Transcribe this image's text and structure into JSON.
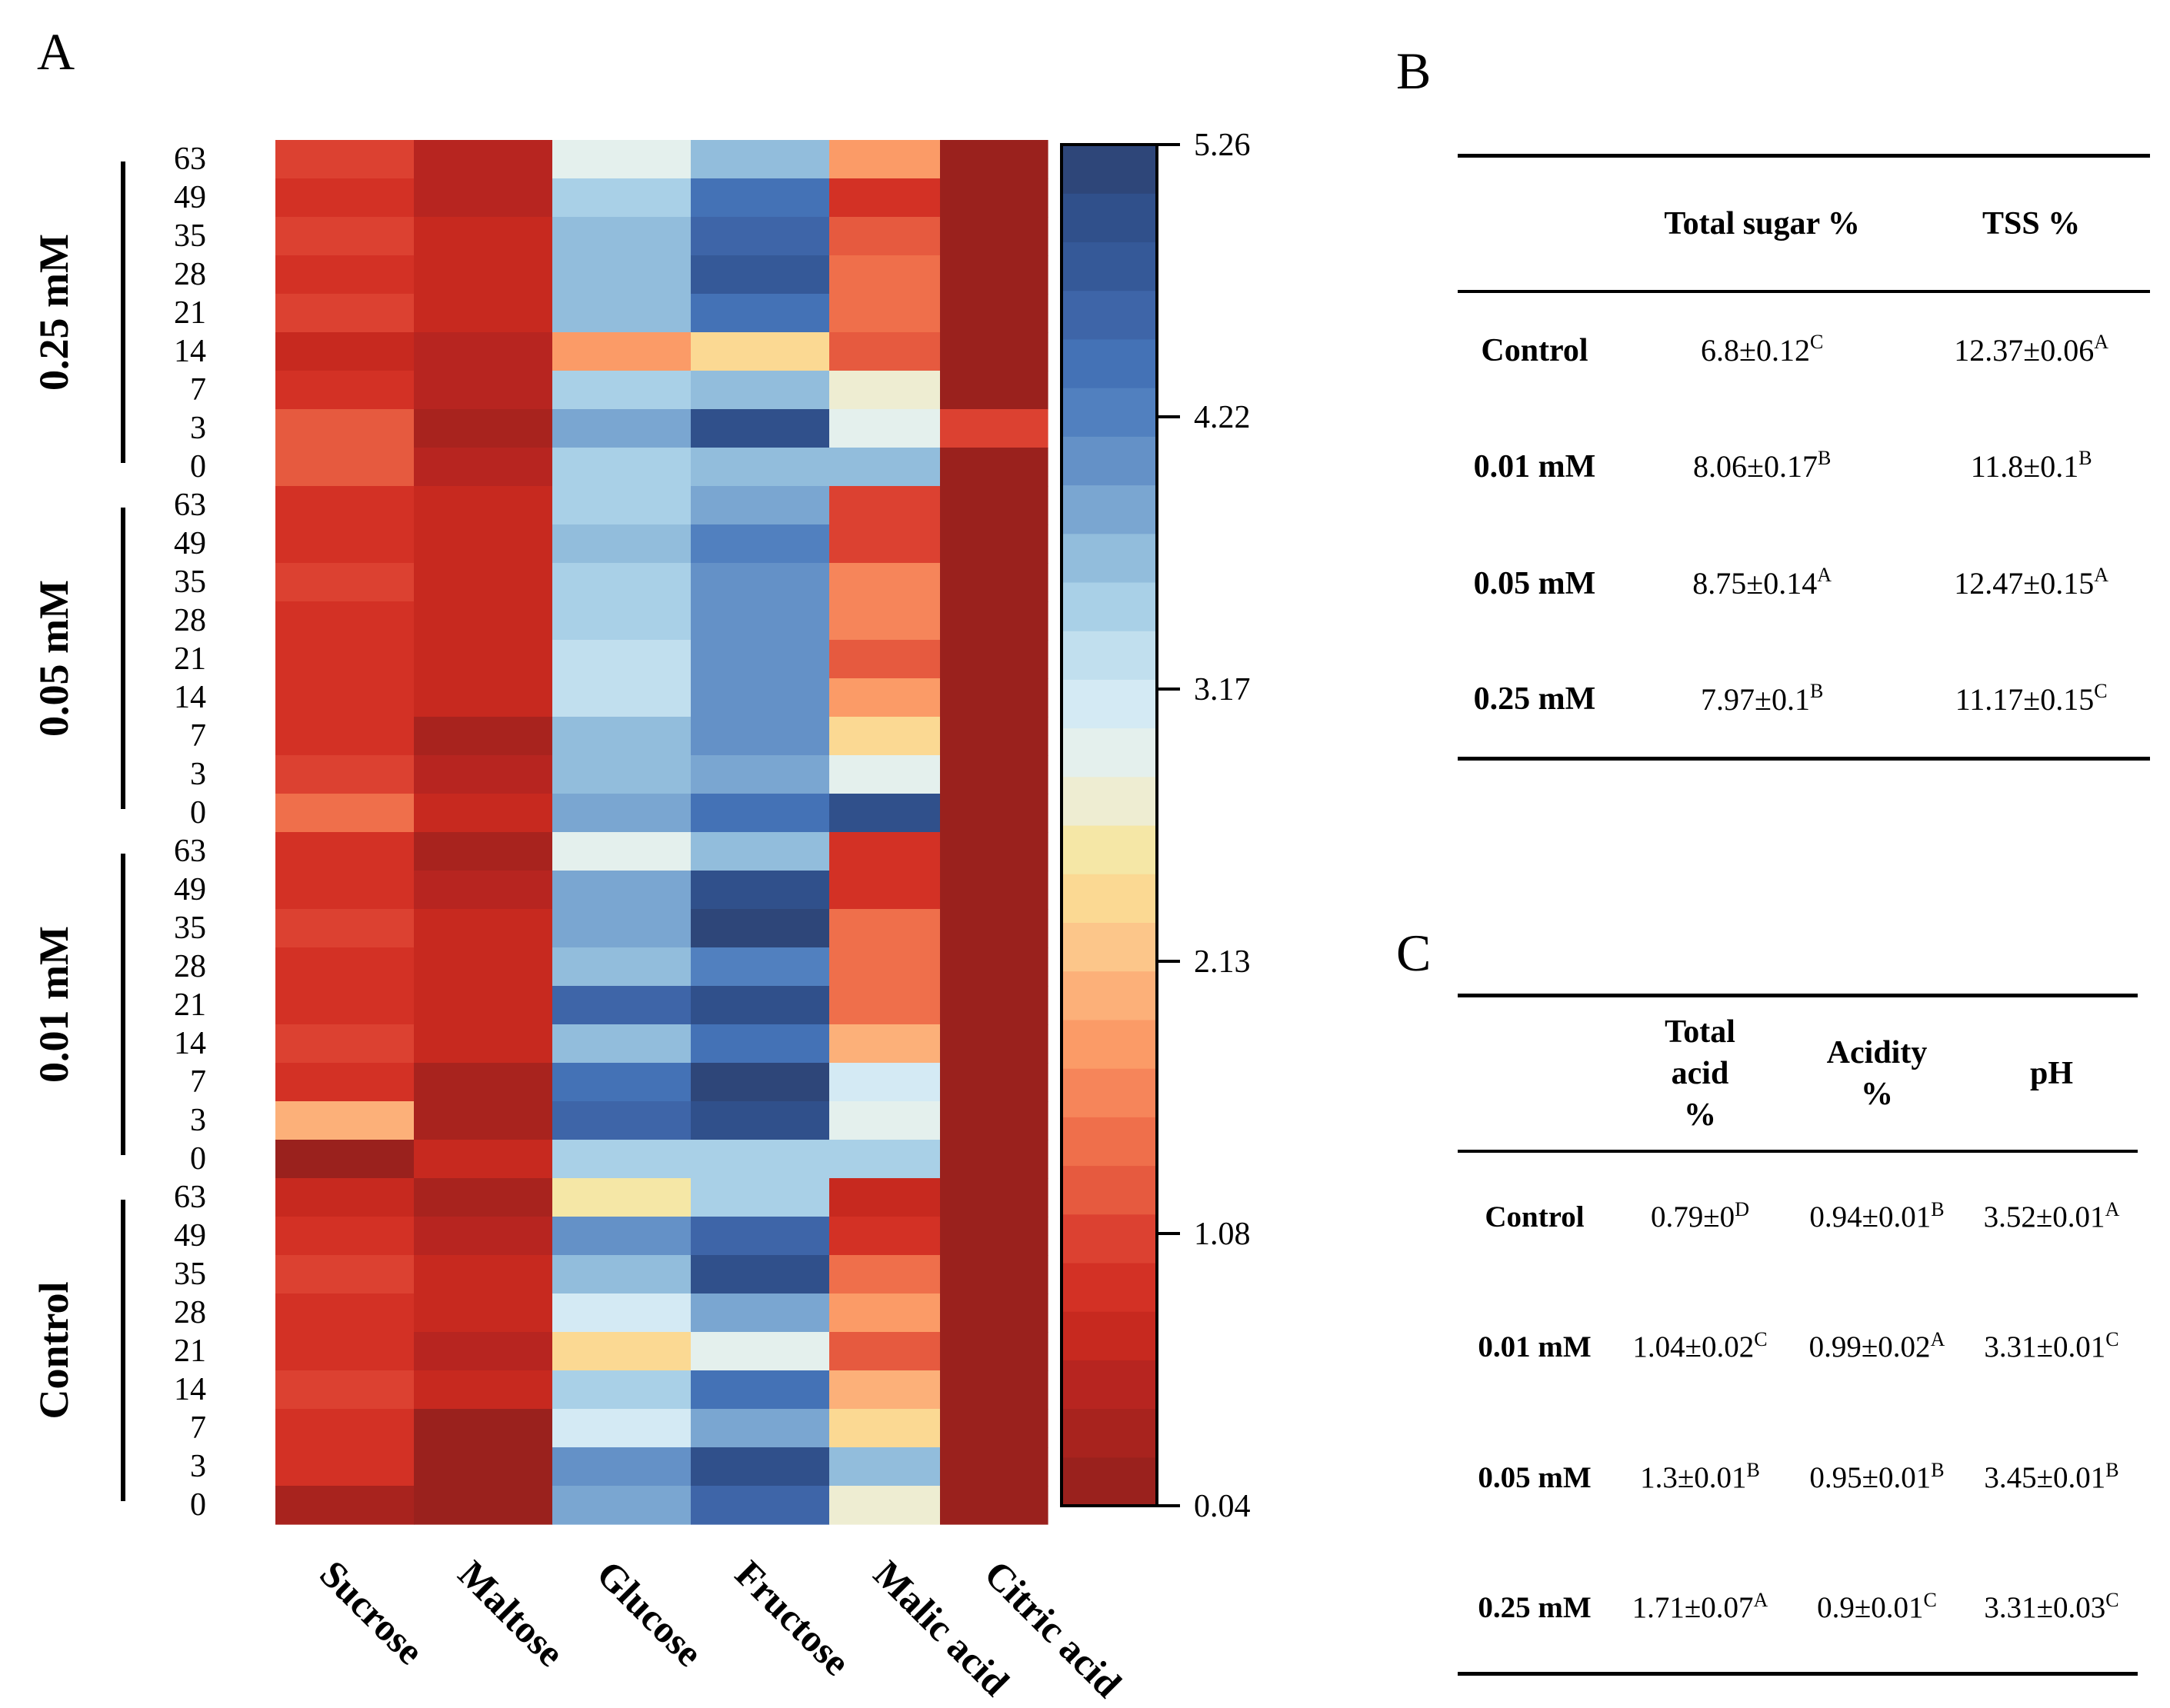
{
  "panel_labels": {
    "a": "A",
    "b": "B",
    "c": "C"
  },
  "chart_data": {
    "type": "heatmap",
    "title": "",
    "columns": [
      "Sucrose",
      "Maltose",
      "Glucose",
      "Fructose",
      "Malic acid",
      "Citric acid"
    ],
    "groups": [
      {
        "name": "0.25 mM",
        "days": [
          "63",
          "49",
          "35",
          "28",
          "21",
          "14",
          "7",
          "3",
          "0"
        ]
      },
      {
        "name": "0.05 mM",
        "days": [
          "63",
          "49",
          "35",
          "28",
          "21",
          "14",
          "7",
          "3",
          "0"
        ]
      },
      {
        "name": "0.01 mM",
        "days": [
          "63",
          "49",
          "35",
          "28",
          "21",
          "14",
          "7",
          "3",
          "0"
        ]
      },
      {
        "name": "Control",
        "days": [
          "63",
          "49",
          "35",
          "28",
          "21",
          "14",
          "7",
          "3",
          "0"
        ]
      }
    ],
    "values": [
      [
        1.0,
        0.5,
        3.0,
        3.7,
        1.8,
        0.2
      ],
      [
        0.8,
        0.5,
        3.4,
        4.4,
        0.9,
        0.2
      ],
      [
        1.1,
        0.7,
        3.6,
        4.7,
        1.3,
        0.2
      ],
      [
        0.9,
        0.6,
        3.6,
        4.8,
        1.5,
        0.2
      ],
      [
        1.1,
        0.6,
        3.6,
        4.5,
        1.5,
        0.2
      ],
      [
        0.7,
        0.5,
        1.9,
        2.4,
        1.3,
        0.2
      ],
      [
        0.9,
        0.5,
        3.4,
        3.7,
        2.7,
        0.2
      ],
      [
        1.3,
        0.3,
        3.9,
        4.9,
        3.0,
        1.1
      ],
      [
        1.3,
        0.5,
        3.4,
        3.7,
        3.7,
        0.2
      ],
      [
        0.8,
        0.6,
        3.4,
        3.8,
        1.1,
        0.2
      ],
      [
        0.8,
        0.6,
        3.7,
        4.3,
        1.1,
        0.2
      ],
      [
        1.1,
        0.6,
        3.5,
        4.0,
        1.7,
        0.2
      ],
      [
        0.9,
        0.6,
        3.5,
        4.0,
        1.7,
        0.2
      ],
      [
        0.9,
        0.6,
        3.3,
        4.0,
        1.3,
        0.2
      ],
      [
        0.9,
        0.6,
        3.3,
        4.0,
        1.8,
        0.2
      ],
      [
        0.9,
        0.3,
        3.7,
        4.0,
        2.4,
        0.2
      ],
      [
        1.1,
        0.5,
        3.6,
        3.8,
        2.9,
        0.2
      ],
      [
        1.5,
        0.6,
        3.9,
        4.5,
        5.0,
        0.2
      ],
      [
        0.9,
        0.4,
        3.0,
        3.7,
        0.9,
        0.2
      ],
      [
        0.8,
        0.5,
        3.8,
        5.0,
        0.8,
        0.2
      ],
      [
        1.1,
        0.7,
        3.8,
        5.1,
        1.5,
        0.2
      ],
      [
        0.9,
        0.6,
        3.6,
        4.2,
        1.5,
        0.2
      ],
      [
        0.9,
        0.6,
        4.6,
        5.0,
        1.5,
        0.2
      ],
      [
        1.1,
        0.6,
        3.6,
        4.5,
        2.0,
        0.2
      ],
      [
        0.8,
        0.3,
        4.4,
        5.2,
        3.1,
        0.2
      ],
      [
        2.0,
        0.4,
        4.6,
        5.0,
        2.9,
        0.2
      ],
      [
        0.2,
        0.6,
        3.4,
        3.4,
        3.4,
        0.2
      ],
      [
        0.7,
        0.4,
        2.5,
        3.4,
        0.6,
        0.2
      ],
      [
        0.8,
        0.5,
        4.0,
        4.7,
        0.9,
        0.2
      ],
      [
        1.1,
        0.7,
        3.6,
        4.9,
        1.5,
        0.2
      ],
      [
        0.9,
        0.6,
        3.1,
        3.9,
        1.9,
        0.2
      ],
      [
        0.8,
        0.5,
        2.4,
        2.9,
        1.2,
        0.2
      ],
      [
        1.1,
        0.6,
        3.5,
        4.5,
        2.0,
        0.2
      ],
      [
        0.9,
        0.2,
        3.2,
        3.8,
        2.4,
        0.2
      ],
      [
        0.9,
        0.2,
        4.0,
        4.9,
        3.6,
        0.2
      ],
      [
        0.4,
        0.2,
        3.8,
        4.6,
        2.8,
        0.2
      ]
    ],
    "colorbar": {
      "min": 0.04,
      "max": 5.26,
      "ticks": [
        "5.26",
        "4.22",
        "3.17",
        "2.13",
        "1.08",
        "0.04"
      ]
    },
    "palette": [
      "#9a211d",
      "#a8231e",
      "#b72520",
      "#c7291f",
      "#d33125",
      "#dc4131",
      "#e65a3f",
      "#ef6f4b",
      "#f6855a",
      "#fb9b67",
      "#fcb079",
      "#fcc68a",
      "#fbd993",
      "#f5e7a6",
      "#eeedd2",
      "#e4f0ed",
      "#d4eaf4",
      "#c1dfee",
      "#a9d0e7",
      "#92bddc",
      "#7aa6d1",
      "#6491c7",
      "#5180bf",
      "#4472b6",
      "#3e65a8",
      "#355998",
      "#30508b",
      "#2e4679"
    ]
  },
  "table_b": {
    "headers": [
      "",
      "Total sugar %",
      "TSS %"
    ],
    "rows": [
      {
        "label": "Control",
        "total_sugar": "6.8±0.12",
        "total_sugar_sup": "C",
        "tss": "12.37±0.06",
        "tss_sup": "A"
      },
      {
        "label": "0.01 mM",
        "total_sugar": "8.06±0.17",
        "total_sugar_sup": "B",
        "tss": "11.8±0.1",
        "tss_sup": "B"
      },
      {
        "label": "0.05 mM",
        "total_sugar": "8.75±0.14",
        "total_sugar_sup": "A",
        "tss": "12.47±0.15",
        "tss_sup": "A"
      },
      {
        "label": "0.25 mM",
        "total_sugar": "7.97±0.1",
        "total_sugar_sup": "B",
        "tss": "11.17±0.15",
        "tss_sup": "C"
      }
    ]
  },
  "table_c": {
    "headers": {
      "total_acid": [
        "Total",
        "acid",
        "%"
      ],
      "acidity": [
        "Acidity",
        "%"
      ],
      "ph": "pH"
    },
    "rows": [
      {
        "label": "Control",
        "total_acid": "0.79±0",
        "total_acid_sup": "D",
        "acidity": "0.94±0.01",
        "acidity_sup": "B",
        "ph": "3.52±0.01",
        "ph_sup": "A"
      },
      {
        "label": "0.01 mM",
        "total_acid": "1.04±0.02",
        "total_acid_sup": "C",
        "acidity": "0.99±0.02",
        "acidity_sup": "A",
        "ph": "3.31±0.01",
        "ph_sup": "C"
      },
      {
        "label": "0.05 mM",
        "total_acid": "1.3±0.01",
        "total_acid_sup": "B",
        "acidity": "0.95±0.01",
        "acidity_sup": "B",
        "ph": "3.45±0.01",
        "ph_sup": "B"
      },
      {
        "label": "0.25 mM",
        "total_acid": "1.71±0.07",
        "total_acid_sup": "A",
        "acidity": "0.9±0.01",
        "acidity_sup": "C",
        "ph": "3.31±0.03",
        "ph_sup": "C"
      }
    ]
  }
}
